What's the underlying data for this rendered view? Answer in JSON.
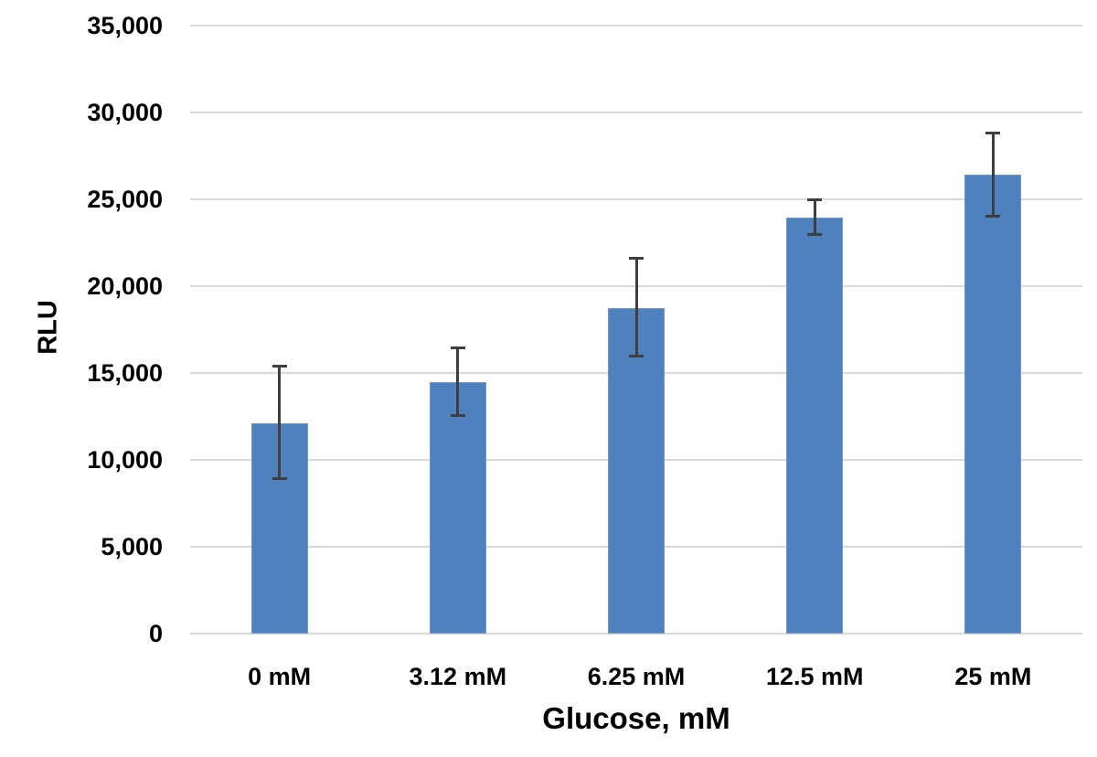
{
  "chart_data": {
    "type": "bar",
    "title": "",
    "xlabel": "Glucose, mM",
    "ylabel": "RLU",
    "categories": [
      "0 mM",
      "3.12 mM",
      "6.25 mM",
      "12.5 mM",
      "25 mM"
    ],
    "values": [
      12100,
      14500,
      18750,
      23950,
      26400
    ],
    "error_low": [
      8900,
      12550,
      15950,
      23000,
      24050
    ],
    "error_high": [
      15400,
      16450,
      21600,
      25000,
      28800
    ],
    "series_name": "RLU",
    "ylim": [
      0,
      35000
    ],
    "ytick_step": 5000,
    "ytick_labels": [
      "0",
      "5,000",
      "10,000",
      "15,000",
      "20,000",
      "25,000",
      "30,000",
      "35,000"
    ],
    "grid": true,
    "legend": "none",
    "bar_color": "#4e81bd",
    "error_color": "#3f3f3f",
    "gridline_color": "#d9d9d9",
    "text_color": "#000000",
    "background_color": "#ffffff"
  }
}
